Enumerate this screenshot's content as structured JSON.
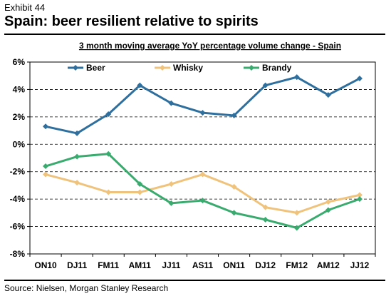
{
  "header": {
    "exhibit": "Exhibit 44",
    "title": "Spain: beer resilient relative to spirits"
  },
  "footer": {
    "source": "Source: Nielsen, Morgan Stanley Research"
  },
  "chart_data": {
    "type": "line",
    "title": "3 month moving average YoY percentage volume change - Spain",
    "xlabel": "",
    "ylabel": "",
    "categories": [
      "ON10",
      "DJ11",
      "FM11",
      "AM11",
      "JJ11",
      "AS11",
      "ON11",
      "DJ12",
      "FM12",
      "AM12",
      "JJ12"
    ],
    "ylim": [
      -8,
      6
    ],
    "yticks": [
      -8,
      -6,
      -4,
      -2,
      0,
      2,
      4,
      6
    ],
    "ytick_labels": [
      "-8%",
      "-6%",
      "-4%",
      "-2%",
      "0%",
      "2%",
      "4%",
      "6%"
    ],
    "grid": "horizontal dashed",
    "legend": "top",
    "series": [
      {
        "name": "Beer",
        "color": "#2e6f9e",
        "marker": "diamond",
        "values": [
          1.3,
          0.8,
          2.2,
          4.3,
          3.0,
          2.3,
          2.1,
          4.3,
          4.9,
          3.6,
          4.8
        ]
      },
      {
        "name": "Whisky",
        "color": "#f0c37c",
        "marker": "diamond",
        "values": [
          -2.2,
          -2.8,
          -3.5,
          -3.5,
          -2.9,
          -2.2,
          -3.1,
          -4.6,
          -5.0,
          -4.2,
          -3.7
        ]
      },
      {
        "name": "Brandy",
        "color": "#3aab6e",
        "marker": "diamond",
        "values": [
          -1.6,
          -0.9,
          -0.7,
          -2.9,
          -4.3,
          -4.1,
          -5.0,
          -5.5,
          -6.1,
          -4.8,
          -4.0
        ]
      }
    ]
  }
}
